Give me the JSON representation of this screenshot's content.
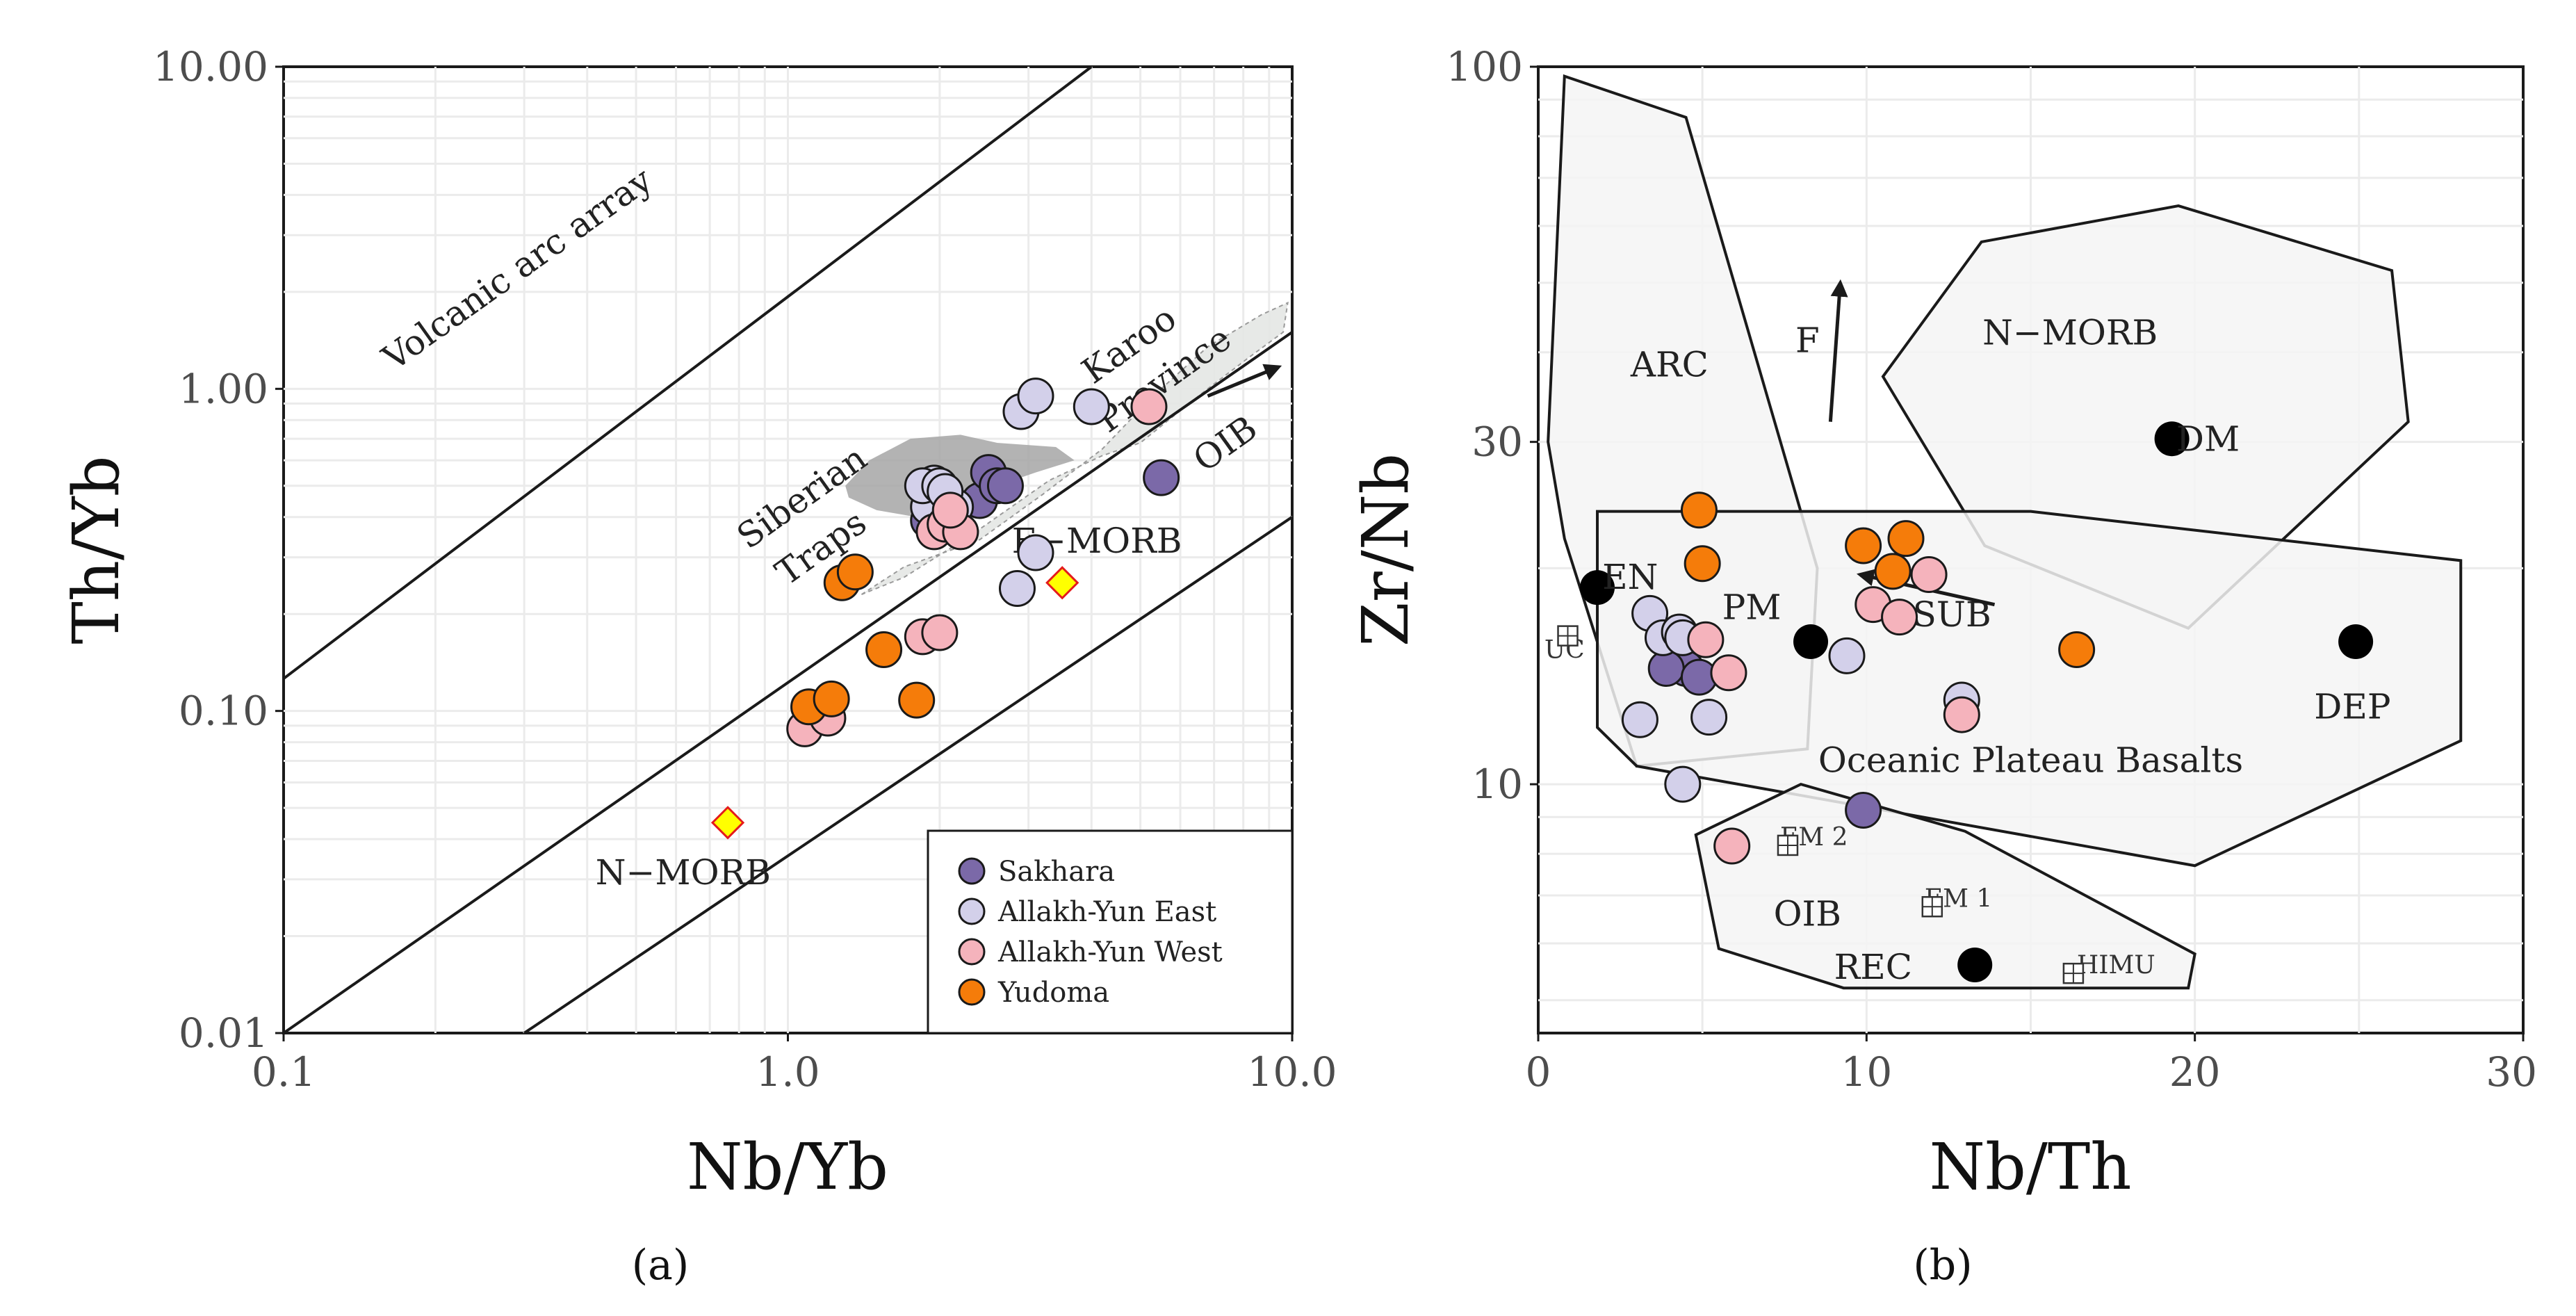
{
  "chart_data": [
    {
      "type": "scatter",
      "id": "a",
      "caption": "(a)",
      "xlabel": "Nb/Yb",
      "ylabel": "Th/Yb",
      "xscale": "log",
      "yscale": "log",
      "xlim": [
        0.1,
        10.0
      ],
      "ylim": [
        0.01,
        10.0
      ],
      "xticks": [
        {
          "v": 0.1,
          "label": "0.1"
        },
        {
          "v": 1.0,
          "label": "1.0"
        },
        {
          "v": 10.0,
          "label": "10.0"
        }
      ],
      "yticks": [
        {
          "v": 0.01,
          "label": "0.01"
        },
        {
          "v": 0.1,
          "label": "0.10"
        },
        {
          "v": 1.0,
          "label": "1.00"
        },
        {
          "v": 10.0,
          "label": "10.00"
        }
      ],
      "reference_lines": [
        {
          "name": "volcanic-arc-line",
          "from": [
            0.1,
            0.126
          ],
          "to": [
            4.0,
            10.0
          ]
        },
        {
          "name": "upper-mantle-array-line",
          "from": [
            0.1,
            0.01
          ],
          "to": [
            10.0,
            1.5
          ]
        },
        {
          "name": "lower-mantle-array-line",
          "from": [
            0.3,
            0.01
          ],
          "to": [
            10.0,
            0.4
          ]
        }
      ],
      "fields": [
        {
          "name": "karoo-province-field",
          "shade": "light",
          "outline": [
            [
              1.4,
              0.23
            ],
            [
              1.7,
              0.28
            ],
            [
              2.4,
              0.34
            ],
            [
              3.2,
              0.47
            ],
            [
              4.2,
              0.65
            ],
            [
              5.3,
              0.95
            ],
            [
              6.8,
              1.35
            ],
            [
              8.7,
              1.7
            ],
            [
              9.8,
              1.85
            ],
            [
              9.6,
              1.5
            ],
            [
              8.2,
              1.25
            ],
            [
              6.8,
              1.0
            ],
            [
              5.8,
              0.82
            ],
            [
              5.0,
              0.68
            ],
            [
              4.2,
              0.62
            ],
            [
              3.3,
              0.52
            ],
            [
              2.3,
              0.35
            ],
            [
              1.7,
              0.26
            ]
          ]
        },
        {
          "name": "siberian-traps-field",
          "shade": "dark",
          "outline": [
            [
              1.3,
              0.5
            ],
            [
              1.45,
              0.6
            ],
            [
              1.75,
              0.7
            ],
            [
              2.2,
              0.72
            ],
            [
              2.6,
              0.68
            ],
            [
              3.4,
              0.66
            ],
            [
              3.7,
              0.6
            ],
            [
              3.1,
              0.55
            ],
            [
              2.6,
              0.5
            ],
            [
              2.2,
              0.44
            ],
            [
              1.8,
              0.4
            ],
            [
              1.5,
              0.42
            ],
            [
              1.32,
              0.46
            ]
          ]
        }
      ],
      "reference_points": [
        {
          "name": "N-MORB",
          "x": 0.76,
          "y": 0.045,
          "color": "#ffff00",
          "edge": "#e41a1c"
        },
        {
          "name": "E-MORB",
          "x": 3.5,
          "y": 0.25,
          "color": "#ffff00",
          "edge": "#e41a1c"
        }
      ],
      "annotations": [
        {
          "text": "Volcanic arc array",
          "x": 0.3,
          "y": 2.2,
          "angle": -35.5,
          "size": "lg"
        },
        {
          "text": "Karoo",
          "x": 4.9,
          "y": 1.28,
          "angle": -35.5,
          "size": "lg"
        },
        {
          "text": "Province",
          "x": 5.75,
          "y": 1.0,
          "angle": -35.5,
          "size": "lg"
        },
        {
          "text": "Siberian",
          "x": 1.1,
          "y": 0.43,
          "angle": -35.5,
          "size": "lg"
        },
        {
          "text": "Traps",
          "x": 1.2,
          "y": 0.3,
          "angle": -35.5,
          "size": "lg"
        },
        {
          "text": "OIB",
          "x": 7.6,
          "y": 0.63,
          "angle": -35.5,
          "size": "lg"
        },
        {
          "text": "E−MORB",
          "x": 4.1,
          "y": 0.31,
          "angle": 0,
          "size": "lg"
        },
        {
          "text": "N−MORB",
          "x": 0.62,
          "y": 0.029,
          "angle": 0,
          "size": "lg"
        }
      ],
      "arrows": [
        {
          "name": "oib-arrow",
          "from": [
            6.8,
            0.95
          ],
          "to": [
            9.4,
            1.17
          ]
        }
      ],
      "series": [
        {
          "name": "Sakhara",
          "color": "#7b69a8",
          "points": [
            [
              1.9,
              0.39
            ],
            [
              2.4,
              0.45
            ],
            [
              2.5,
              0.55
            ],
            [
              2.6,
              0.5
            ],
            [
              2.7,
              0.5
            ],
            [
              5.5,
              0.53
            ]
          ]
        },
        {
          "name": "Allakh-Yun East",
          "color": "#d3d0ea",
          "points": [
            [
              1.9,
              0.43
            ],
            [
              1.95,
              0.51
            ],
            [
              1.85,
              0.5
            ],
            [
              2.0,
              0.5
            ],
            [
              2.15,
              0.43
            ],
            [
              2.05,
              0.48
            ],
            [
              2.9,
              0.85
            ],
            [
              3.1,
              0.95
            ],
            [
              4.0,
              0.88
            ],
            [
              3.1,
              0.31
            ],
            [
              2.85,
              0.24
            ]
          ]
        },
        {
          "name": "Allakh-Yun West",
          "color": "#f5b3bc",
          "points": [
            [
              1.95,
              0.36
            ],
            [
              2.05,
              0.38
            ],
            [
              2.2,
              0.36
            ],
            [
              2.1,
              0.42
            ],
            [
              1.85,
              0.17
            ],
            [
              2.0,
              0.175
            ],
            [
              1.08,
              0.088
            ],
            [
              1.2,
              0.095
            ],
            [
              5.2,
              0.88
            ]
          ]
        },
        {
          "name": "Yudoma",
          "color": "#f57c0a",
          "points": [
            [
              1.28,
              0.25
            ],
            [
              1.36,
              0.27
            ],
            [
              1.55,
              0.155
            ],
            [
              1.8,
              0.108
            ],
            [
              1.1,
              0.103
            ],
            [
              1.22,
              0.109
            ]
          ]
        }
      ],
      "legend": {
        "position": "bottom-right",
        "entries": [
          "Sakhara",
          "Allakh-Yun East",
          "Allakh-Yun West",
          "Yudoma"
        ]
      }
    },
    {
      "type": "scatter",
      "id": "b",
      "caption": "(b)",
      "xlabel": "Nb/Th",
      "ylabel": "Zr/Nb",
      "xscale": "linear",
      "yscale": "log",
      "xlim": [
        0,
        30
      ],
      "ylim": [
        4.5,
        100
      ],
      "xticks": [
        {
          "v": 0,
          "label": "0"
        },
        {
          "v": 10,
          "label": "10"
        },
        {
          "v": 20,
          "label": "20"
        },
        {
          "v": 30,
          "label": "30"
        }
      ],
      "yticks": [
        {
          "v": 10,
          "label": "10"
        },
        {
          "v": 30,
          "label": "30"
        },
        {
          "v": 100,
          "label": "100"
        }
      ],
      "fields": [
        {
          "name": "arc-field",
          "outline": [
            [
              0.8,
              97
            ],
            [
              4.5,
              85
            ],
            [
              8.5,
              20
            ],
            [
              8.2,
              11.2
            ],
            [
              3.0,
              10.6
            ],
            [
              0.8,
              22
            ],
            [
              0.3,
              30
            ]
          ]
        },
        {
          "name": "n-morb-field",
          "outline": [
            [
              13.5,
              57
            ],
            [
              19.5,
              64
            ],
            [
              26.0,
              52
            ],
            [
              26.5,
              32
            ],
            [
              19.8,
              16.5
            ],
            [
              13.6,
              21.5
            ],
            [
              10.5,
              37
            ]
          ]
        },
        {
          "name": "oceanic-plateau-field",
          "outline": [
            [
              1.8,
              24
            ],
            [
              15.0,
              24
            ],
            [
              28.1,
              20.5
            ],
            [
              28.1,
              11.5
            ],
            [
              20.0,
              7.7
            ],
            [
              3.0,
              10.6
            ],
            [
              1.8,
              12
            ]
          ]
        },
        {
          "name": "oib-field",
          "outline": [
            [
              4.8,
              8.5
            ],
            [
              8.0,
              10.0
            ],
            [
              13.0,
              8.6
            ],
            [
              20.0,
              5.8
            ],
            [
              19.8,
              5.2
            ],
            [
              9.3,
              5.2
            ],
            [
              5.5,
              5.9
            ]
          ]
        }
      ],
      "annotations": [
        {
          "text": "ARC",
          "x": 4.0,
          "y": 37,
          "size": "lg"
        },
        {
          "text": "N−MORB",
          "x": 16.2,
          "y": 41,
          "size": "lg"
        },
        {
          "text": "SUB",
          "x": 12.6,
          "y": 16.6,
          "size": "lg"
        },
        {
          "text": "Oceanic Plateau Basalts",
          "x": 15.0,
          "y": 10.4,
          "size": "lg"
        },
        {
          "text": "OIB",
          "x": 8.2,
          "y": 6.35,
          "size": "lg"
        },
        {
          "text": "F",
          "x": 8.2,
          "y": 40,
          "size": "lg"
        },
        {
          "text": "UC",
          "x": 0.8,
          "y": 15.0,
          "size": "sm"
        },
        {
          "text": "EM 2",
          "x": 8.4,
          "y": 8.22,
          "size": "sm"
        },
        {
          "text": "EM 1",
          "x": 12.8,
          "y": 6.75,
          "size": "sm"
        },
        {
          "text": "HIMU",
          "x": 17.6,
          "y": 5.45,
          "size": "sm"
        }
      ],
      "arrows": [
        {
          "name": "f-arrow",
          "from": [
            8.9,
            32
          ],
          "to": [
            9.2,
            50
          ]
        },
        {
          "name": "sub-arrow",
          "from": [
            13.9,
            17.8
          ],
          "to": [
            9.8,
            19.6
          ]
        }
      ],
      "endmembers": [
        {
          "name": "DM",
          "x": 19.3,
          "y": 30.3
        },
        {
          "name": "EN",
          "x": 1.8,
          "y": 18.8
        },
        {
          "name": "PM",
          "x": 8.3,
          "y": 15.8
        },
        {
          "name": "DEP",
          "x": 24.9,
          "y": 15.8
        },
        {
          "name": "REC",
          "x": 13.3,
          "y": 5.6
        }
      ],
      "reservoirs": [
        {
          "name": "UC",
          "x": 0.9,
          "y": 16.1
        },
        {
          "name": "EM 2",
          "x": 7.6,
          "y": 8.22
        },
        {
          "name": "EM 1",
          "x": 12.0,
          "y": 6.75
        },
        {
          "name": "HIMU",
          "x": 16.3,
          "y": 5.45
        }
      ],
      "endmember_labels": [
        {
          "text": "DM",
          "x": 20.4,
          "y": 30.2
        },
        {
          "text": "EN",
          "x": 2.8,
          "y": 19.4
        },
        {
          "text": "PM",
          "x": 6.5,
          "y": 17.6
        },
        {
          "text": "DEP",
          "x": 24.8,
          "y": 12.8
        },
        {
          "text": "REC",
          "x": 10.2,
          "y": 5.55
        }
      ],
      "series": [
        {
          "name": "Sakhara",
          "color": "#7b69a8",
          "points": [
            [
              4.4,
              15.5
            ],
            [
              4.5,
              14.5
            ],
            [
              3.9,
              14.5
            ],
            [
              4.9,
              14.1
            ],
            [
              9.9,
              9.2
            ]
          ]
        },
        {
          "name": "Allakh-Yun East",
          "color": "#d3d0ea",
          "points": [
            [
              3.4,
              17.3
            ],
            [
              3.8,
              16.0
            ],
            [
              4.3,
              16.3
            ],
            [
              4.4,
              16.0
            ],
            [
              3.1,
              12.3
            ],
            [
              5.2,
              12.4
            ],
            [
              4.4,
              10.0
            ],
            [
              9.4,
              15.1
            ],
            [
              12.9,
              13.1
            ]
          ]
        },
        {
          "name": "Allakh-Yun West",
          "color": "#f5b3bc",
          "points": [
            [
              5.1,
              15.9
            ],
            [
              5.8,
              14.3
            ],
            [
              10.2,
              17.8
            ],
            [
              11.0,
              17.1
            ],
            [
              11.9,
              19.6
            ],
            [
              5.9,
              8.2
            ],
            [
              12.9,
              12.5
            ]
          ]
        },
        {
          "name": "Yudoma",
          "color": "#f57c0a",
          "points": [
            [
              4.9,
              24.1
            ],
            [
              5.0,
              20.3
            ],
            [
              9.9,
              21.5
            ],
            [
              10.8,
              19.8
            ],
            [
              11.2,
              22.0
            ],
            [
              16.4,
              15.4
            ]
          ]
        }
      ]
    }
  ]
}
